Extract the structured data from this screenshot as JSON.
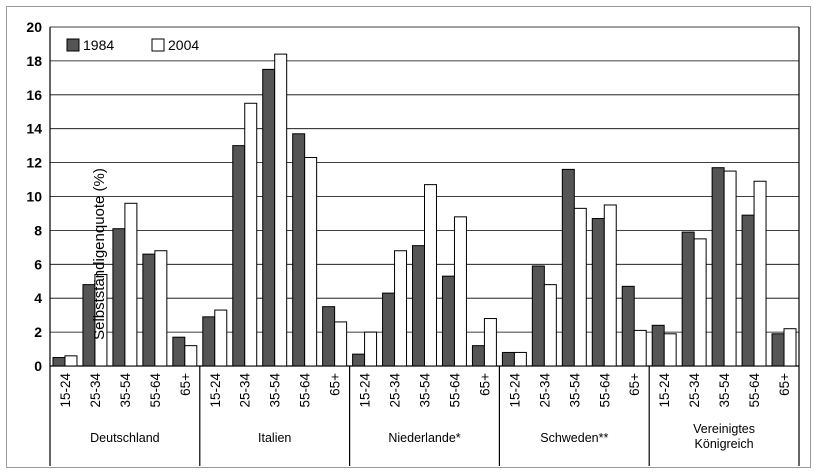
{
  "chart_data": {
    "type": "bar",
    "ylabel": "Selbstständigenquote (%)",
    "ylim": [
      0,
      20
    ],
    "yticks": [
      "0",
      "2",
      "4",
      "6",
      "8",
      "10",
      "12",
      "14",
      "16",
      "18",
      "20"
    ],
    "grid": true,
    "legend_position": "top-left",
    "series": [
      {
        "name": "1984",
        "color": "#555555"
      },
      {
        "name": "2004",
        "color": "#ffffff"
      }
    ],
    "groups": [
      {
        "label": "Deutschland",
        "categories": [
          "15-24",
          "25-34",
          "35-54",
          "55-64",
          "65+"
        ],
        "values_1984": [
          0.5,
          4.8,
          8.1,
          6.6,
          1.7
        ],
        "values_2004": [
          0.6,
          5.4,
          9.6,
          6.8,
          1.2
        ]
      },
      {
        "label": "Italien",
        "categories": [
          "15-24",
          "25-34",
          "35-54",
          "55-64",
          "65+"
        ],
        "values_1984": [
          2.9,
          13.0,
          17.5,
          13.7,
          3.5
        ],
        "values_2004": [
          3.3,
          15.5,
          18.4,
          12.3,
          2.6
        ]
      },
      {
        "label": "Niederlande*",
        "categories": [
          "15-24",
          "25-34",
          "35-54",
          "55-64",
          "65+"
        ],
        "values_1984": [
          0.7,
          4.3,
          7.1,
          5.3,
          1.2
        ],
        "values_2004": [
          2.0,
          6.8,
          10.7,
          8.8,
          2.8
        ]
      },
      {
        "label": "Schweden**",
        "categories": [
          "15-24",
          "25-34",
          "35-54",
          "55-64",
          "65+"
        ],
        "values_1984": [
          0.8,
          5.9,
          11.6,
          8.7,
          4.7
        ],
        "values_2004": [
          0.8,
          4.8,
          9.3,
          9.5,
          2.1
        ]
      },
      {
        "label": "Vereinigtes Königreich",
        "label_lines": [
          "Vereinigtes",
          "Königreich"
        ],
        "categories": [
          "15-24",
          "25-34",
          "35-54",
          "55-64",
          "65+"
        ],
        "values_1984": [
          2.4,
          7.9,
          11.7,
          8.9,
          1.9
        ],
        "values_2004": [
          1.9,
          7.5,
          11.5,
          10.9,
          2.2
        ]
      }
    ]
  }
}
